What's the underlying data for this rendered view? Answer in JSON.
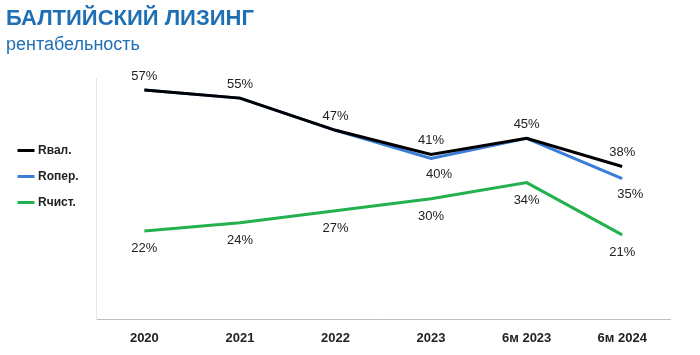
{
  "chart_data": {
    "type": "line",
    "title": "БАЛТИЙСКИЙ ЛИЗИНГ",
    "subtitle": "рентабельность",
    "categories": [
      "2020",
      "2021",
      "2022",
      "2023",
      "6м 2023",
      "6м 2024"
    ],
    "series": [
      {
        "name": "Rвал.",
        "color": "#000000",
        "values": [
          57,
          55,
          47,
          41,
          45,
          38
        ],
        "value_labels": [
          "57%",
          "55%",
          "47%",
          "41%",
          "45%",
          "38%"
        ]
      },
      {
        "name": "Rопер.",
        "color": "#3b7dd8",
        "values": [
          57,
          55,
          47,
          40,
          45,
          35
        ],
        "value_labels": [
          null,
          null,
          null,
          "40%",
          null,
          "35%"
        ]
      },
      {
        "name": "Rчист.",
        "color": "#22b14c",
        "values": [
          22,
          24,
          27,
          30,
          34,
          21
        ],
        "value_labels": [
          "22%",
          "24%",
          "27%",
          "30%",
          "34%",
          "21%"
        ]
      }
    ],
    "ylim": [
      0,
      60
    ],
    "grid": false,
    "legend": "left",
    "data_labels": true,
    "tick_labels": "x"
  }
}
